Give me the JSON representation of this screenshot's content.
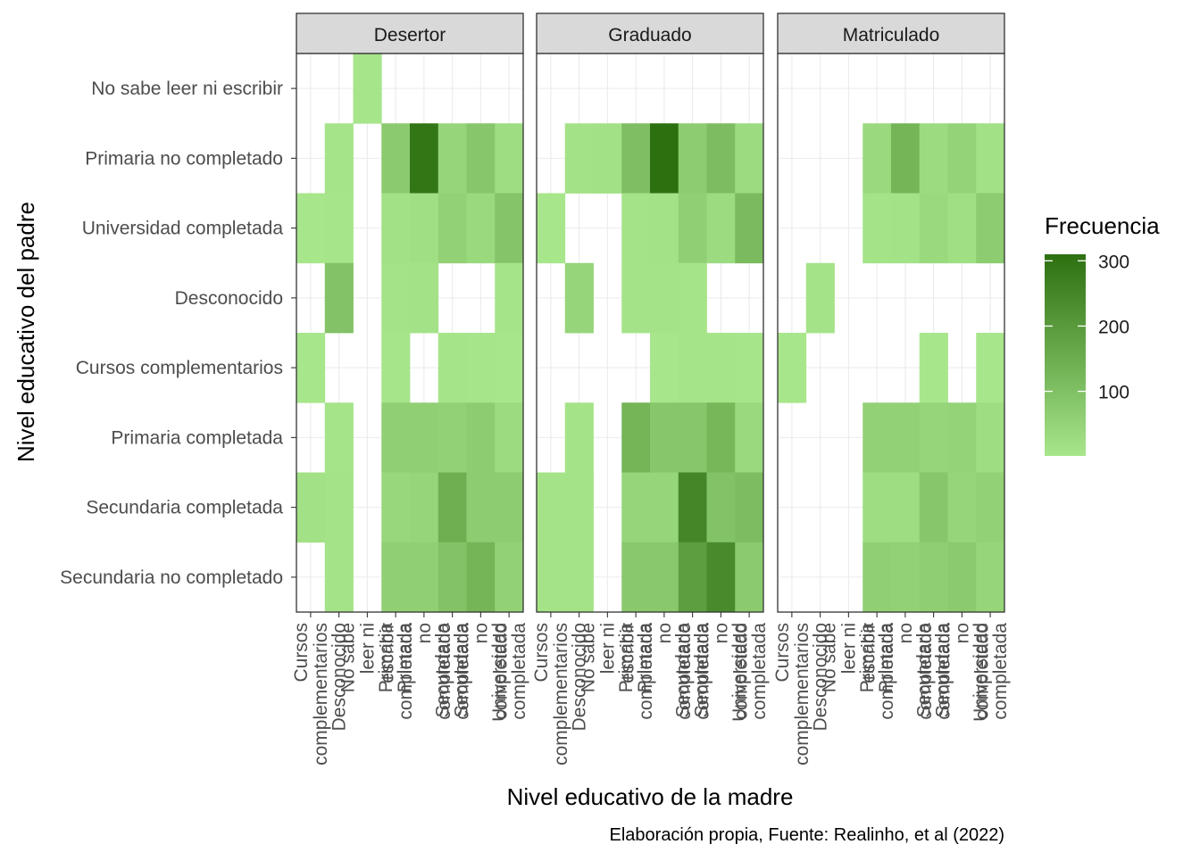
{
  "chart_data": {
    "type": "heatmap",
    "facets": [
      "Desertor",
      "Graduado",
      "Matriculado"
    ],
    "xlabel": "Nivel educativo de la madre",
    "ylabel": "Nivel educativo del padre",
    "caption": "Elaboración propia, Fuente: Realinho, et al (2022)",
    "x_categories": [
      "Cursos complementarios",
      "Desconocido",
      "No sabe leer ni escribir",
      "Primaria completada",
      "Primaria no completado",
      "Secundaria completada",
      "Secundaria no completado",
      "Universidad completada"
    ],
    "x_category_labels_wrapped": [
      [
        "Cursos",
        "complementarios"
      ],
      [
        "Desconocido"
      ],
      [
        "No sabe",
        "leer ni",
        "escribir"
      ],
      [
        "Primaria",
        "completada"
      ],
      [
        "Primaria",
        "no",
        "completado"
      ],
      [
        "Secundaria",
        "completada"
      ],
      [
        "Secundaria",
        "no",
        "completado"
      ],
      [
        "Universidad",
        "completada"
      ]
    ],
    "y_categories_top_to_bottom": [
      "No sabe leer ni escribir",
      "Primaria no completado",
      "Universidad completada",
      "Desconocido",
      "Cursos complementarios",
      "Primaria completada",
      "Secundaria completada",
      "Secundaria no completado"
    ],
    "legend": {
      "title": "Frecuencia",
      "ticks": [
        100,
        200,
        300
      ],
      "range": [
        1,
        310
      ],
      "color_low": "#a8e68c",
      "color_high": "#2d7010",
      "placement": "right"
    },
    "cells": {
      "Desertor": [
        {
          "x": "No sabe leer ni escribir",
          "y": "No sabe leer ni escribir",
          "value": 3
        },
        {
          "x": "Desconocido",
          "y": "Primaria no completado",
          "value": 5
        },
        {
          "x": "Primaria completada",
          "y": "Primaria no completado",
          "value": 75
        },
        {
          "x": "Primaria no completado",
          "y": "Primaria no completado",
          "value": 295
        },
        {
          "x": "Secundaria completada",
          "y": "Primaria no completado",
          "value": 45
        },
        {
          "x": "Secundaria no completado",
          "y": "Primaria no completado",
          "value": 85
        },
        {
          "x": "Universidad completada",
          "y": "Primaria no completado",
          "value": 25
        },
        {
          "x": "Cursos complementarios",
          "y": "Universidad completada",
          "value": 2
        },
        {
          "x": "Desconocido",
          "y": "Universidad completada",
          "value": 3
        },
        {
          "x": "Primaria completada",
          "y": "Universidad completada",
          "value": 15
        },
        {
          "x": "Primaria no completado",
          "y": "Universidad completada",
          "value": 20
        },
        {
          "x": "Secundaria completada",
          "y": "Universidad completada",
          "value": 55
        },
        {
          "x": "Secundaria no completado",
          "y": "Universidad completada",
          "value": 35
        },
        {
          "x": "Universidad completada",
          "y": "Universidad completada",
          "value": 90
        },
        {
          "x": "Desconocido",
          "y": "Desconocido",
          "value": 95
        },
        {
          "x": "Primaria completada",
          "y": "Desconocido",
          "value": 10
        },
        {
          "x": "Primaria no completado",
          "y": "Desconocido",
          "value": 12
        },
        {
          "x": "Universidad completada",
          "y": "Desconocido",
          "value": 5
        },
        {
          "x": "Cursos complementarios",
          "y": "Cursos complementarios",
          "value": 1
        },
        {
          "x": "Primaria completada",
          "y": "Cursos complementarios",
          "value": 3
        },
        {
          "x": "Secundaria completada",
          "y": "Cursos complementarios",
          "value": 5
        },
        {
          "x": "Secundaria no completado",
          "y": "Cursos complementarios",
          "value": 3
        },
        {
          "x": "Universidad completada",
          "y": "Cursos complementarios",
          "value": 2
        },
        {
          "x": "Desconocido",
          "y": "Primaria completada",
          "value": 5
        },
        {
          "x": "Primaria completada",
          "y": "Primaria completada",
          "value": 60
        },
        {
          "x": "Primaria no completado",
          "y": "Primaria completada",
          "value": 60
        },
        {
          "x": "Secundaria completada",
          "y": "Primaria completada",
          "value": 55
        },
        {
          "x": "Secundaria no completado",
          "y": "Primaria completada",
          "value": 70
        },
        {
          "x": "Universidad completada",
          "y": "Primaria completada",
          "value": 30
        },
        {
          "x": "Cursos complementarios",
          "y": "Secundaria completada",
          "value": 15
        },
        {
          "x": "Desconocido",
          "y": "Secundaria completada",
          "value": 10
        },
        {
          "x": "Primaria completada",
          "y": "Secundaria completada",
          "value": 40
        },
        {
          "x": "Primaria no completado",
          "y": "Secundaria completada",
          "value": 45
        },
        {
          "x": "Secundaria completada",
          "y": "Secundaria completada",
          "value": 145
        },
        {
          "x": "Secundaria no completado",
          "y": "Secundaria completada",
          "value": 70
        },
        {
          "x": "Universidad completada",
          "y": "Secundaria completada",
          "value": 70
        },
        {
          "x": "Desconocido",
          "y": "Secundaria no completado",
          "value": 8
        },
        {
          "x": "Primaria completada",
          "y": "Secundaria no completado",
          "value": 60
        },
        {
          "x": "Primaria no completado",
          "y": "Secundaria no completado",
          "value": 60
        },
        {
          "x": "Secundaria completada",
          "y": "Secundaria no completado",
          "value": 95
        },
        {
          "x": "Secundaria no completado",
          "y": "Secundaria no completado",
          "value": 130
        },
        {
          "x": "Universidad completada",
          "y": "Secundaria no completado",
          "value": 55
        }
      ],
      "Graduado": [
        {
          "x": "Desconocido",
          "y": "Primaria no completado",
          "value": 12
        },
        {
          "x": "No sabe leer ni escribir",
          "y": "Primaria no completado",
          "value": 15
        },
        {
          "x": "Primaria completada",
          "y": "Primaria no completado",
          "value": 105
        },
        {
          "x": "Primaria no completado",
          "y": "Primaria no completado",
          "value": 310
        },
        {
          "x": "Secundaria completada",
          "y": "Primaria no completado",
          "value": 70
        },
        {
          "x": "Secundaria no completado",
          "y": "Primaria no completado",
          "value": 110
        },
        {
          "x": "Universidad completada",
          "y": "Primaria no completado",
          "value": 30
        },
        {
          "x": "Cursos complementarios",
          "y": "Universidad completada",
          "value": 2
        },
        {
          "x": "Primaria completada",
          "y": "Universidad completada",
          "value": 10
        },
        {
          "x": "Primaria no completado",
          "y": "Universidad completada",
          "value": 12
        },
        {
          "x": "Secundaria completada",
          "y": "Universidad completada",
          "value": 60
        },
        {
          "x": "Secundaria no completado",
          "y": "Universidad completada",
          "value": 30
        },
        {
          "x": "Universidad completada",
          "y": "Universidad completada",
          "value": 115
        },
        {
          "x": "Desconocido",
          "y": "Desconocido",
          "value": 45
        },
        {
          "x": "Primaria completada",
          "y": "Desconocido",
          "value": 8
        },
        {
          "x": "Primaria no completado",
          "y": "Desconocido",
          "value": 10
        },
        {
          "x": "Secundaria completada",
          "y": "Desconocido",
          "value": 5
        },
        {
          "x": "Secundaria completada",
          "y": "Cursos complementarios",
          "value": 5
        },
        {
          "x": "Secundaria no completado",
          "y": "Cursos complementarios",
          "value": 5
        },
        {
          "x": "Universidad completada",
          "y": "Cursos complementarios",
          "value": 3
        },
        {
          "x": "Primaria no completado",
          "y": "Cursos complementarios",
          "value": 2
        },
        {
          "x": "Desconocido",
          "y": "Primaria completada",
          "value": 8
        },
        {
          "x": "Primaria completada",
          "y": "Primaria completada",
          "value": 130
        },
        {
          "x": "Primaria no completado",
          "y": "Primaria completada",
          "value": 85
        },
        {
          "x": "Secundaria completada",
          "y": "Primaria completada",
          "value": 85
        },
        {
          "x": "Secundaria no completado",
          "y": "Primaria completada",
          "value": 125
        },
        {
          "x": "Universidad completada",
          "y": "Primaria completada",
          "value": 35
        },
        {
          "x": "Cursos complementarios",
          "y": "Secundaria completada",
          "value": 10
        },
        {
          "x": "Desconocido",
          "y": "Secundaria completada",
          "value": 10
        },
        {
          "x": "Primaria completada",
          "y": "Secundaria completada",
          "value": 45
        },
        {
          "x": "Primaria no completado",
          "y": "Secundaria completada",
          "value": 45
        },
        {
          "x": "Secundaria completada",
          "y": "Secundaria completada",
          "value": 250
        },
        {
          "x": "Secundaria no completado",
          "y": "Secundaria completada",
          "value": 95
        },
        {
          "x": "Universidad completada",
          "y": "Secundaria completada",
          "value": 110
        },
        {
          "x": "Cursos complementarios",
          "y": "Secundaria no completado",
          "value": 10
        },
        {
          "x": "Desconocido",
          "y": "Secundaria no completado",
          "value": 10
        },
        {
          "x": "Primaria completada",
          "y": "Secundaria no completado",
          "value": 80
        },
        {
          "x": "Primaria no completado",
          "y": "Secundaria no completado",
          "value": 80
        },
        {
          "x": "Secundaria completada",
          "y": "Secundaria no completado",
          "value": 190
        },
        {
          "x": "Secundaria no completado",
          "y": "Secundaria no completado",
          "value": 240
        },
        {
          "x": "Universidad completada",
          "y": "Secundaria no completado",
          "value": 75
        }
      ],
      "Matriculado": [
        {
          "x": "Primaria completada",
          "y": "Primaria no completado",
          "value": 35
        },
        {
          "x": "Primaria no completado",
          "y": "Primaria no completado",
          "value": 130
        },
        {
          "x": "Secundaria completada",
          "y": "Primaria no completado",
          "value": 30
        },
        {
          "x": "Secundaria no completado",
          "y": "Primaria no completado",
          "value": 50
        },
        {
          "x": "Universidad completada",
          "y": "Primaria no completado",
          "value": 15
        },
        {
          "x": "Primaria completada",
          "y": "Universidad completada",
          "value": 10
        },
        {
          "x": "Primaria no completado",
          "y": "Universidad completada",
          "value": 12
        },
        {
          "x": "Secundaria completada",
          "y": "Universidad completada",
          "value": 35
        },
        {
          "x": "Secundaria no completado",
          "y": "Universidad completada",
          "value": 20
        },
        {
          "x": "Universidad completada",
          "y": "Universidad completada",
          "value": 70
        },
        {
          "x": "Desconocido",
          "y": "Desconocido",
          "value": 8
        },
        {
          "x": "Cursos complementarios",
          "y": "Cursos complementarios",
          "value": 1
        },
        {
          "x": "Secundaria completada",
          "y": "Cursos complementarios",
          "value": 2
        },
        {
          "x": "Universidad completada",
          "y": "Cursos complementarios",
          "value": 2
        },
        {
          "x": "Primaria completada",
          "y": "Primaria completada",
          "value": 55
        },
        {
          "x": "Primaria no completado",
          "y": "Primaria completada",
          "value": 55
        },
        {
          "x": "Secundaria completada",
          "y": "Primaria completada",
          "value": 45
        },
        {
          "x": "Secundaria no completado",
          "y": "Primaria completada",
          "value": 50
        },
        {
          "x": "Universidad completada",
          "y": "Primaria completada",
          "value": 25
        },
        {
          "x": "Primaria completada",
          "y": "Secundaria completada",
          "value": 25
        },
        {
          "x": "Primaria no completado",
          "y": "Secundaria completada",
          "value": 25
        },
        {
          "x": "Secundaria completada",
          "y": "Secundaria completada",
          "value": 85
        },
        {
          "x": "Secundaria no completado",
          "y": "Secundaria completada",
          "value": 45
        },
        {
          "x": "Universidad completada",
          "y": "Secundaria completada",
          "value": 55
        },
        {
          "x": "Primaria completada",
          "y": "Secundaria no completado",
          "value": 60
        },
        {
          "x": "Primaria no completado",
          "y": "Secundaria no completado",
          "value": 55
        },
        {
          "x": "Secundaria completada",
          "y": "Secundaria no completado",
          "value": 65
        },
        {
          "x": "Secundaria no completado",
          "y": "Secundaria no completado",
          "value": 75
        },
        {
          "x": "Universidad completada",
          "y": "Secundaria no completado",
          "value": 45
        }
      ]
    }
  }
}
